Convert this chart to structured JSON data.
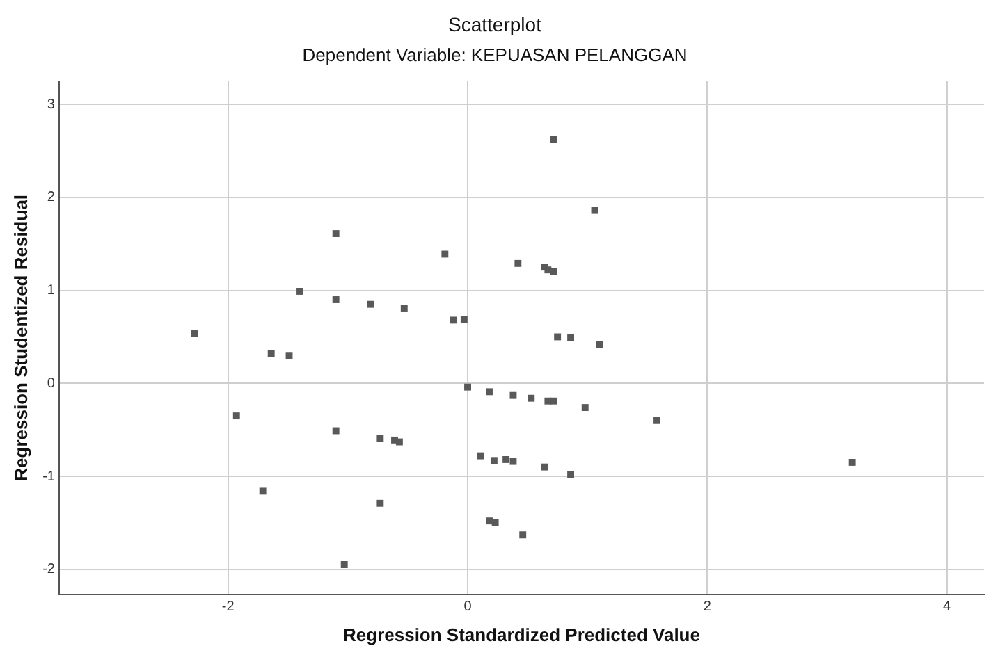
{
  "chart_data": {
    "type": "scatter",
    "title": "Scatterplot",
    "subtitle": "Dependent Variable: KEPUASAN PELANGGAN",
    "xlabel": "Regression Standardized Predicted Value",
    "ylabel": "Regression Studentized Residual",
    "x": [
      -2.28,
      -1.1,
      -0.19,
      -1.4,
      -1.1,
      -0.81,
      -0.53,
      -0.12,
      -0.03,
      -1.64,
      -1.49,
      0.0,
      0.18,
      -1.93,
      -1.1,
      -0.73,
      -0.61,
      -0.57,
      0.11,
      0.22,
      -1.71,
      -0.73,
      0.18,
      0.23,
      -1.03,
      0.72,
      1.06,
      0.42,
      0.64,
      0.67,
      0.72,
      0.75,
      0.86,
      1.1,
      0.38,
      0.53,
      0.67,
      0.72,
      0.98,
      1.58,
      0.32,
      0.38,
      0.64,
      0.86,
      0.46,
      3.21
    ],
    "values": [
      0.54,
      1.61,
      1.39,
      0.99,
      0.9,
      0.85,
      0.81,
      0.68,
      0.69,
      0.32,
      0.3,
      -0.04,
      -0.09,
      -0.35,
      -0.51,
      -0.59,
      -0.61,
      -0.63,
      -0.78,
      -0.83,
      -1.16,
      -1.29,
      -1.48,
      -1.5,
      -1.95,
      2.62,
      1.86,
      1.29,
      1.25,
      1.22,
      1.2,
      0.5,
      0.49,
      0.42,
      -0.13,
      -0.16,
      -0.19,
      -0.19,
      -0.26,
      -0.4,
      -0.82,
      -0.84,
      -0.9,
      -0.98,
      -1.63,
      -0.85
    ],
    "color": "#595959",
    "marker": "square",
    "xlim": [
      -3.41,
      4.31
    ],
    "ylim": [
      -2.27,
      3.25
    ],
    "xticks": [
      -2,
      0,
      2,
      4
    ],
    "yticks": [
      -2,
      -1,
      0,
      1,
      2,
      3
    ],
    "grid": true,
    "legend": false
  }
}
